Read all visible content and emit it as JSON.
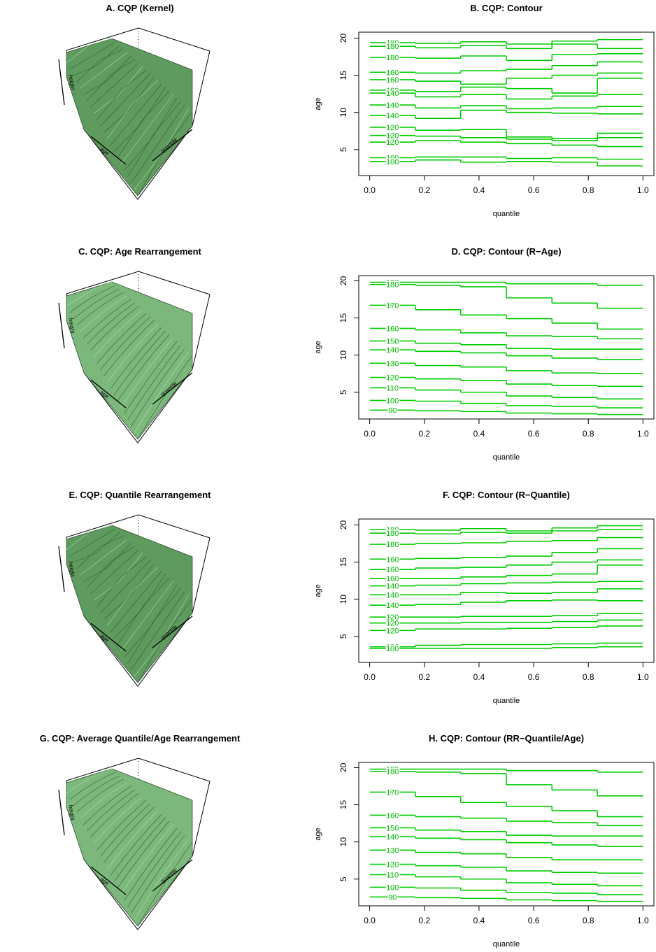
{
  "chart_data": [
    {
      "type": "surface3d",
      "title": "A. CQP (Kernel)",
      "zlabel": "height",
      "ylabel": "age",
      "xlabel": "quantile",
      "color": "#5f9a5f",
      "rough": true
    },
    {
      "type": "contour",
      "title": "B. CQP: Contour",
      "xlabel": "quantile",
      "ylabel": "age",
      "color": "#00cc00",
      "xlim": [
        -0.04,
        1.04
      ],
      "ylim": [
        1.5,
        20.8
      ],
      "xticks": [
        {
          "value": 0,
          "label": "0.0"
        },
        0.2,
        0.4,
        0.6,
        0.8,
        {
          "value": 1,
          "label": "1.0"
        }
      ],
      "yticks": [
        5,
        10,
        15,
        20
      ],
      "x_edges": [
        0,
        0.167,
        0.333,
        0.5,
        0.667,
        0.833,
        1
      ],
      "contours": [
        {
          "label": "180",
          "values": [
            19.4,
            19.3,
            19.5,
            19.2,
            19.6,
            19.8
          ]
        },
        {
          "label": "180",
          "values": [
            18.9,
            18.7,
            19.0,
            18.6,
            19.2,
            18.6
          ]
        },
        {
          "label": "180",
          "values": [
            17.4,
            17.3,
            17.6,
            17.0,
            17.8,
            17.9
          ]
        },
        {
          "label": "160",
          "values": [
            15.4,
            15.3,
            15.6,
            15.8,
            16.3,
            16.8
          ]
        },
        {
          "label": "160",
          "values": [
            14.4,
            14.2,
            13.8,
            14.6,
            15.0,
            15.3
          ]
        },
        {
          "label": "160",
          "values": [
            13.0,
            12.8,
            13.4,
            13.2,
            12.6,
            14.6
          ]
        },
        {
          "label": "140",
          "values": [
            12.6,
            12.1,
            12.4,
            11.8,
            12.2,
            12.4
          ]
        },
        {
          "label": "140",
          "values": [
            11.0,
            10.6,
            10.9,
            10.5,
            10.6,
            10.8
          ]
        },
        {
          "label": "140",
          "values": [
            9.6,
            9.2,
            10.3,
            10.0,
            9.9,
            9.8
          ]
        },
        {
          "label": "120",
          "values": [
            8.0,
            7.6,
            7.7,
            6.7,
            6.5,
            7.2
          ]
        },
        {
          "label": "120",
          "values": [
            6.9,
            6.8,
            6.6,
            6.4,
            6.2,
            6.6
          ]
        },
        {
          "label": "120",
          "values": [
            6.0,
            6.2,
            6.0,
            5.8,
            5.6,
            5.4
          ]
        },
        {
          "label": "100",
          "values": [
            3.9,
            4.0,
            4.0,
            3.8,
            3.9,
            3.7
          ]
        },
        {
          "label": "100",
          "values": [
            3.4,
            3.6,
            3.3,
            3.4,
            3.3,
            2.8
          ]
        }
      ]
    },
    {
      "type": "surface3d",
      "title": "C. CQP: Age Rearrangement",
      "zlabel": "height",
      "ylabel": "age",
      "xlabel": "quantile",
      "color": "#7cb87c",
      "rough": false
    },
    {
      "type": "contour",
      "title": "D. CQP: Contour (R−Age)",
      "xlabel": "quantile",
      "ylabel": "age",
      "color": "#00cc00",
      "xlim": [
        -0.04,
        1.04
      ],
      "ylim": [
        1.4,
        20.7
      ],
      "xticks": [
        {
          "value": 0,
          "label": "0.0"
        },
        0.2,
        0.4,
        0.6,
        0.8,
        {
          "value": 1,
          "label": "1.0"
        }
      ],
      "yticks": [
        5,
        10,
        15,
        20
      ],
      "x_edges": [
        0,
        0.167,
        0.333,
        0.5,
        0.667,
        0.833,
        1
      ],
      "contours": [
        {
          "label": "190",
          "values": [
            19.8,
            19.8,
            19.8,
            19.6,
            19.6,
            19.4
          ]
        },
        {
          "label": "180",
          "values": [
            19.5,
            19.4,
            19.2,
            17.7,
            17.0,
            16.3
          ]
        },
        {
          "label": "170",
          "values": [
            16.7,
            16.1,
            15.4,
            14.9,
            14.3,
            13.5
          ]
        },
        {
          "label": "160",
          "values": [
            13.6,
            13.4,
            13.0,
            12.6,
            12.5,
            12.2
          ]
        },
        {
          "label": "150",
          "values": [
            11.9,
            11.6,
            11.4,
            10.9,
            10.8,
            10.8
          ]
        },
        {
          "label": "140",
          "values": [
            10.7,
            10.5,
            10.3,
            9.9,
            9.6,
            9.4
          ]
        },
        {
          "label": "130",
          "values": [
            8.9,
            8.6,
            8.4,
            7.9,
            7.6,
            7.5
          ]
        },
        {
          "label": "120",
          "values": [
            7.0,
            6.8,
            6.6,
            6.1,
            5.9,
            5.8
          ]
        },
        {
          "label": "110",
          "values": [
            5.6,
            5.3,
            5.0,
            4.5,
            4.3,
            4.1
          ]
        },
        {
          "label": "100",
          "values": [
            3.9,
            3.8,
            3.5,
            3.2,
            3.1,
            2.9
          ]
        },
        {
          "label": "90",
          "values": [
            2.6,
            2.5,
            2.4,
            2.2,
            2.1,
            2.0
          ]
        }
      ]
    },
    {
      "type": "surface3d",
      "title": "E. CQP: Quantile Rearrangement",
      "zlabel": "height",
      "ylabel": "age",
      "xlabel": "quantile",
      "color": "#5f9a5f",
      "rough": true
    },
    {
      "type": "contour",
      "title": "F. CQP: Contour (R−Quantile)",
      "xlabel": "quantile",
      "ylabel": "age",
      "color": "#00cc00",
      "xlim": [
        -0.04,
        1.04
      ],
      "ylim": [
        1.5,
        20.8
      ],
      "xticks": [
        {
          "value": 0,
          "label": "0.0"
        },
        0.2,
        0.4,
        0.6,
        0.8,
        {
          "value": 1,
          "label": "1.0"
        }
      ],
      "yticks": [
        5,
        10,
        15,
        20
      ],
      "x_edges": [
        0,
        0.167,
        0.333,
        0.5,
        0.667,
        0.833,
        1
      ],
      "contours": [
        {
          "label": "180",
          "values": [
            19.4,
            19.3,
            19.5,
            19.2,
            19.6,
            19.9
          ]
        },
        {
          "label": "180",
          "values": [
            18.9,
            18.8,
            19.0,
            18.9,
            19.2,
            19.4
          ]
        },
        {
          "label": "180",
          "values": [
            17.4,
            17.5,
            17.6,
            17.8,
            17.9,
            18.3
          ]
        },
        {
          "label": "160",
          "values": [
            15.4,
            15.5,
            15.6,
            15.8,
            16.3,
            16.8
          ]
        },
        {
          "label": "160",
          "values": [
            14.0,
            14.2,
            14.3,
            14.6,
            15.0,
            15.3
          ]
        },
        {
          "label": "160",
          "values": [
            12.8,
            12.8,
            13.0,
            13.2,
            13.4,
            14.6
          ]
        },
        {
          "label": "140",
          "values": [
            11.8,
            11.9,
            12.1,
            12.2,
            12.3,
            12.4
          ]
        },
        {
          "label": "140",
          "values": [
            10.6,
            10.6,
            10.9,
            10.8,
            10.9,
            11.4
          ]
        },
        {
          "label": "140",
          "values": [
            9.2,
            9.3,
            9.6,
            9.8,
            9.9,
            9.8
          ]
        },
        {
          "label": "120",
          "values": [
            7.6,
            7.6,
            7.7,
            7.7,
            7.8,
            8.1
          ]
        },
        {
          "label": "120",
          "values": [
            6.8,
            6.8,
            6.9,
            6.9,
            7.0,
            7.2
          ]
        },
        {
          "label": "120",
          "values": [
            5.8,
            6.0,
            6.0,
            6.1,
            6.2,
            6.4
          ]
        },
        {
          "label": "100",
          "values": [
            3.6,
            3.8,
            3.9,
            3.9,
            4.0,
            4.1
          ]
        },
        {
          "label": "100",
          "values": [
            3.4,
            3.4,
            3.4,
            3.4,
            3.5,
            3.6
          ]
        }
      ]
    },
    {
      "type": "surface3d",
      "title": "G. CQP: Average Quantile/Age Rearrangement",
      "zlabel": "height",
      "ylabel": "age",
      "xlabel": "quantile",
      "color": "#7cb87c",
      "rough": false
    },
    {
      "type": "contour",
      "title": "H. CQP: Contour (RR−Quantile/Age)",
      "xlabel": "quantile",
      "ylabel": "age",
      "color": "#00cc00",
      "xlim": [
        -0.04,
        1.04
      ],
      "ylim": [
        1.4,
        20.7
      ],
      "xticks": [
        {
          "value": 0,
          "label": "0.0"
        },
        0.2,
        0.4,
        0.6,
        0.8,
        {
          "value": 1,
          "label": "1.0"
        }
      ],
      "yticks": [
        5,
        10,
        15,
        20
      ],
      "x_edges": [
        0,
        0.167,
        0.333,
        0.5,
        0.667,
        0.833,
        1
      ],
      "contours": [
        {
          "label": "190",
          "values": [
            19.8,
            19.8,
            19.8,
            19.6,
            19.6,
            19.4
          ]
        },
        {
          "label": "180",
          "values": [
            19.5,
            19.4,
            19.2,
            17.7,
            17.0,
            16.2
          ]
        },
        {
          "label": "170",
          "values": [
            16.7,
            16.1,
            15.3,
            14.8,
            14.2,
            13.4
          ]
        },
        {
          "label": "160",
          "values": [
            13.6,
            13.4,
            13.2,
            12.8,
            12.6,
            12.2
          ]
        },
        {
          "label": "150",
          "values": [
            11.9,
            11.6,
            11.4,
            10.9,
            10.8,
            10.8
          ]
        },
        {
          "label": "140",
          "values": [
            10.7,
            10.5,
            10.3,
            9.9,
            9.6,
            9.4
          ]
        },
        {
          "label": "130",
          "values": [
            8.9,
            8.6,
            8.4,
            7.9,
            7.6,
            7.6
          ]
        },
        {
          "label": "120",
          "values": [
            7.0,
            6.8,
            6.6,
            6.1,
            5.9,
            5.8
          ]
        },
        {
          "label": "110",
          "values": [
            5.6,
            5.3,
            5.0,
            4.5,
            4.3,
            4.1
          ]
        },
        {
          "label": "100",
          "values": [
            3.9,
            3.8,
            3.5,
            3.2,
            3.1,
            2.9
          ]
        },
        {
          "label": "90",
          "values": [
            2.6,
            2.5,
            2.4,
            2.2,
            2.1,
            2.0
          ]
        }
      ]
    }
  ]
}
